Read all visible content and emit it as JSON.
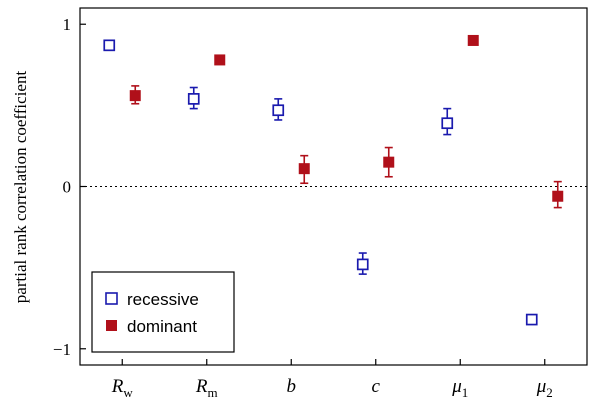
{
  "chart_data": {
    "type": "scatter",
    "ylabel": "partial rank correlation coefficient",
    "ylim": [
      -1.1,
      1.1
    ],
    "yticks": [
      1,
      0,
      -1
    ],
    "ytick_labels": [
      "1",
      "0",
      "−1"
    ],
    "zero_line": true,
    "categories": [
      {
        "main": "R",
        "sub": "w"
      },
      {
        "main": "R",
        "sub": "m"
      },
      {
        "main": "b",
        "sub": ""
      },
      {
        "main": "c",
        "sub": ""
      },
      {
        "main": "μ",
        "sub": "1"
      },
      {
        "main": "μ",
        "sub": "2"
      }
    ],
    "legend_position": "bottom-left",
    "series": [
      {
        "name": "recessive",
        "color": "#1a1aae",
        "marker": "open-square",
        "values": [
          0.87,
          0.54,
          0.47,
          -0.48,
          0.39,
          -0.82
        ],
        "err_low": [
          null,
          0.48,
          0.41,
          -0.54,
          0.32,
          null
        ],
        "err_high": [
          null,
          0.61,
          0.54,
          -0.41,
          0.48,
          null
        ]
      },
      {
        "name": "dominant",
        "color": "#b0101a",
        "marker": "filled-square",
        "values": [
          0.56,
          0.78,
          0.11,
          0.15,
          0.9,
          -0.06
        ],
        "err_low": [
          0.51,
          null,
          0.02,
          0.06,
          null,
          -0.13
        ],
        "err_high": [
          0.62,
          null,
          0.19,
          0.24,
          null,
          0.03
        ]
      }
    ]
  }
}
